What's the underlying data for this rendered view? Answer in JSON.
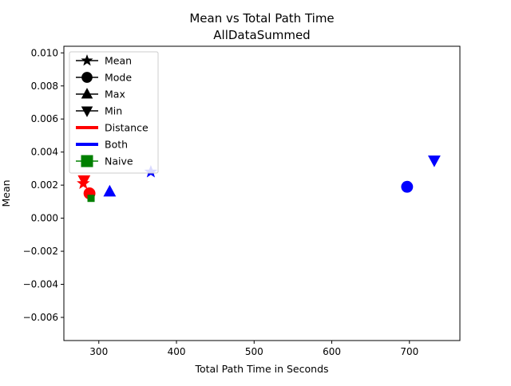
{
  "chart_data": {
    "type": "scatter",
    "title": "Mean vs Total Path Time",
    "subtitle": "AllDataSummed",
    "xlabel": "Total Path Time in Seconds",
    "ylabel": "Mean",
    "xlim": [
      255,
      765
    ],
    "ylim": [
      -0.0074,
      0.0104
    ],
    "xticks": [
      {
        "value": 300,
        "label": "300"
      },
      {
        "value": 400,
        "label": "400"
      },
      {
        "value": 500,
        "label": "500"
      },
      {
        "value": 600,
        "label": "600"
      },
      {
        "value": 700,
        "label": "700"
      }
    ],
    "yticks": [
      {
        "value": -0.006,
        "label": "−0.006"
      },
      {
        "value": -0.004,
        "label": "−0.004"
      },
      {
        "value": -0.002,
        "label": "−0.002"
      },
      {
        "value": 0.0,
        "label": "0.000"
      },
      {
        "value": 0.002,
        "label": "0.002"
      },
      {
        "value": 0.004,
        "label": "0.004"
      },
      {
        "value": 0.006,
        "label": "0.006"
      },
      {
        "value": 0.008,
        "label": "0.008"
      },
      {
        "value": 0.01,
        "label": "0.010"
      }
    ],
    "grid": false,
    "legend_position": "upper-left",
    "legend": [
      {
        "label": "Mean",
        "kind": "marker",
        "marker": "star",
        "color": "#000000"
      },
      {
        "label": "Mode",
        "kind": "marker",
        "marker": "circle",
        "color": "#000000"
      },
      {
        "label": "Max",
        "kind": "marker",
        "marker": "triangle-up",
        "color": "#000000"
      },
      {
        "label": "Min",
        "kind": "marker",
        "marker": "triangle-down",
        "color": "#000000"
      },
      {
        "label": "Distance",
        "kind": "line",
        "color": "#ff0000"
      },
      {
        "label": "Both",
        "kind": "line",
        "color": "#0000ff"
      },
      {
        "label": "Naive",
        "kind": "square",
        "color": "#008000"
      }
    ],
    "points": [
      {
        "algorithm": "Distance",
        "stat": "Mean",
        "marker": "star",
        "color": "#ff0000",
        "x": 280,
        "y": 0.0021
      },
      {
        "algorithm": "Distance",
        "stat": "Min",
        "marker": "triangle-down",
        "color": "#ff0000",
        "x": 281,
        "y": 0.0023
      },
      {
        "algorithm": "Distance",
        "stat": "Mode",
        "marker": "circle",
        "color": "#ff0000",
        "x": 288,
        "y": 0.0015
      },
      {
        "algorithm": "Naive",
        "stat": "Naive",
        "marker": "square",
        "color": "#008000",
        "x": 290,
        "y": 0.0012
      },
      {
        "algorithm": "Both",
        "stat": "Max",
        "marker": "triangle-up",
        "color": "#0000ff",
        "x": 314,
        "y": 0.0016
      },
      {
        "algorithm": "Both",
        "stat": "Mean",
        "marker": "star",
        "color": "#0000ff",
        "x": 367,
        "y": 0.0028
      },
      {
        "algorithm": "Both",
        "stat": "Mode",
        "marker": "circle",
        "color": "#0000ff",
        "x": 697,
        "y": 0.0019
      },
      {
        "algorithm": "Both",
        "stat": "Min",
        "marker": "triangle-down",
        "color": "#0000ff",
        "x": 732,
        "y": 0.0035
      }
    ]
  }
}
